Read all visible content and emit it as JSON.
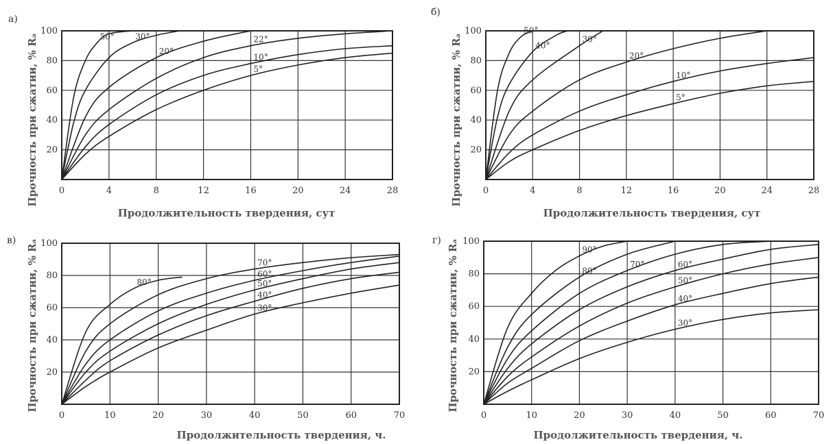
{
  "chart_data": [
    {
      "panel": "а)",
      "type": "line",
      "xlabel": "Продолжительность твердения, сут",
      "ylabel": "Прочность при сжатии, % Rₐ",
      "xlim": [
        0,
        28
      ],
      "ylim": [
        0,
        100
      ],
      "xticks": [
        0,
        4,
        8,
        12,
        16,
        20,
        24,
        28
      ],
      "xtick_labels": [
        "0",
        "4",
        "8",
        "12",
        "16",
        "20",
        "24",
        "28"
      ],
      "yticks": [
        20,
        40,
        60,
        80,
        100
      ],
      "ytick_labels": [
        "20",
        "40",
        "60",
        "80",
        "100"
      ],
      "grid": true,
      "series": [
        {
          "name": "50°",
          "x": [
            0,
            1,
            2,
            3,
            4,
            6
          ],
          "y": [
            0,
            55,
            80,
            92,
            98,
            100
          ]
        },
        {
          "name": "30°",
          "x": [
            0,
            1,
            2,
            4,
            6,
            8,
            10
          ],
          "y": [
            0,
            38,
            60,
            82,
            92,
            97,
            100
          ]
        },
        {
          "name": "20°",
          "x": [
            0,
            2,
            4,
            8,
            12,
            16
          ],
          "y": [
            0,
            42,
            62,
            82,
            93,
            100
          ]
        },
        {
          "name": "22°",
          "x": [
            0,
            2,
            4,
            8,
            12,
            16,
            20,
            24,
            28
          ],
          "y": [
            0,
            30,
            47,
            68,
            82,
            90,
            95,
            98,
            100
          ]
        },
        {
          "name": "10°",
          "x": [
            0,
            2,
            4,
            8,
            12,
            16,
            20,
            24,
            28
          ],
          "y": [
            0,
            22,
            37,
            57,
            70,
            78,
            84,
            88,
            90
          ]
        },
        {
          "name": "5°",
          "x": [
            0,
            2,
            4,
            8,
            12,
            16,
            20,
            24,
            28
          ],
          "y": [
            0,
            17,
            29,
            47,
            60,
            70,
            77,
            82,
            85
          ]
        }
      ]
    },
    {
      "panel": "б)",
      "type": "line",
      "xlabel": "Продолжительность твердения, сут",
      "ylabel": "Прочность при сжатии, % Rₐ",
      "xlim": [
        0,
        28
      ],
      "ylim": [
        0,
        100
      ],
      "xticks": [
        0,
        4,
        8,
        12,
        16,
        20,
        24,
        28
      ],
      "xtick_labels": [
        "0",
        "4",
        "8",
        "12",
        "16",
        "20",
        "24",
        "28"
      ],
      "yticks": [
        20,
        40,
        60,
        80,
        100
      ],
      "ytick_labels": [
        "20",
        "40",
        "60",
        "80",
        "100"
      ],
      "grid": true,
      "series": [
        {
          "name": "50°",
          "x": [
            0,
            1,
            2,
            3,
            4
          ],
          "y": [
            0,
            60,
            85,
            96,
            100
          ]
        },
        {
          "name": "40°",
          "x": [
            0,
            1,
            2,
            4,
            6,
            7
          ],
          "y": [
            0,
            42,
            64,
            86,
            97,
            100
          ]
        },
        {
          "name": "30°",
          "x": [
            0,
            2,
            4,
            8,
            10
          ],
          "y": [
            0,
            46,
            67,
            90,
            100
          ]
        },
        {
          "name": "20°",
          "x": [
            0,
            2,
            4,
            8,
            12,
            16,
            20,
            24
          ],
          "y": [
            0,
            30,
            46,
            67,
            79,
            88,
            95,
            100
          ]
        },
        {
          "name": "10°",
          "x": [
            0,
            2,
            4,
            8,
            12,
            16,
            20,
            24,
            28
          ],
          "y": [
            0,
            18,
            30,
            46,
            57,
            66,
            73,
            78,
            82
          ]
        },
        {
          "name": "5°",
          "x": [
            0,
            2,
            4,
            8,
            12,
            16,
            20,
            24,
            28
          ],
          "y": [
            0,
            12,
            20,
            33,
            43,
            51,
            58,
            63,
            66
          ]
        }
      ]
    },
    {
      "panel": "в)",
      "type": "line",
      "xlabel": "Продолжительность твердения, ч.",
      "ylabel": "Прочность при сжатии, % Rₐ",
      "xlim": [
        0,
        70
      ],
      "ylim": [
        0,
        100
      ],
      "xticks": [
        0,
        10,
        20,
        30,
        40,
        50,
        60,
        70
      ],
      "xtick_labels": [
        "0",
        "10",
        "20",
        "30",
        "40",
        "50",
        "60",
        "70"
      ],
      "yticks": [
        20,
        40,
        60,
        80,
        100
      ],
      "ytick_labels": [
        "20",
        "40",
        "60",
        "80",
        "100"
      ],
      "grid": true,
      "series": [
        {
          "name": "80°",
          "x": [
            0,
            5,
            10,
            15,
            20,
            25
          ],
          "y": [
            0,
            45,
            62,
            72,
            77,
            79
          ]
        },
        {
          "name": "70°",
          "x": [
            0,
            5,
            10,
            20,
            30,
            40,
            50,
            60,
            70
          ],
          "y": [
            0,
            33,
            50,
            68,
            78,
            84,
            88,
            91,
            93
          ]
        },
        {
          "name": "60°",
          "x": [
            0,
            5,
            10,
            20,
            30,
            40,
            50,
            60,
            70
          ],
          "y": [
            0,
            25,
            40,
            58,
            69,
            77,
            83,
            88,
            92
          ]
        },
        {
          "name": "50°",
          "x": [
            0,
            5,
            10,
            20,
            30,
            40,
            50,
            60,
            70
          ],
          "y": [
            0,
            20,
            33,
            50,
            62,
            71,
            78,
            84,
            88
          ]
        },
        {
          "name": "40°",
          "x": [
            0,
            5,
            10,
            20,
            30,
            40,
            50,
            60,
            70
          ],
          "y": [
            0,
            15,
            27,
            43,
            55,
            64,
            72,
            78,
            82
          ]
        },
        {
          "name": "30°",
          "x": [
            0,
            5,
            10,
            20,
            30,
            40,
            50,
            60,
            70
          ],
          "y": [
            0,
            11,
            20,
            35,
            46,
            56,
            63,
            69,
            74
          ]
        }
      ]
    },
    {
      "panel": "г)",
      "type": "line",
      "xlabel": "Продолжительность твердения, ч.",
      "ylabel": "Прочность при сжатии, % Rₐ",
      "xlim": [
        0,
        70
      ],
      "ylim": [
        0,
        100
      ],
      "xticks": [
        0,
        10,
        20,
        30,
        40,
        50,
        60,
        70
      ],
      "xtick_labels": [
        "0",
        "10",
        "20",
        "30",
        "40",
        "50",
        "60",
        "70"
      ],
      "yticks": [
        20,
        40,
        60,
        80,
        100
      ],
      "ytick_labels": [
        "20",
        "40",
        "60",
        "80",
        "100"
      ],
      "grid": true,
      "series": [
        {
          "name": "90°",
          "x": [
            0,
            5,
            10,
            15,
            20,
            25,
            30
          ],
          "y": [
            0,
            47,
            68,
            82,
            91,
            97,
            100
          ]
        },
        {
          "name": "80°",
          "x": [
            0,
            5,
            10,
            20,
            30,
            40
          ],
          "y": [
            0,
            35,
            55,
            78,
            92,
            100
          ]
        },
        {
          "name": "70°",
          "x": [
            0,
            5,
            10,
            20,
            30,
            40,
            50,
            60
          ],
          "y": [
            0,
            28,
            45,
            68,
            82,
            92,
            98,
            100
          ]
        },
        {
          "name": "60°",
          "x": [
            0,
            5,
            10,
            20,
            30,
            40,
            50,
            60,
            70
          ],
          "y": [
            0,
            22,
            37,
            58,
            72,
            82,
            89,
            95,
            98
          ]
        },
        {
          "name": "50°",
          "x": [
            0,
            5,
            10,
            20,
            30,
            40,
            50,
            60,
            70
          ],
          "y": [
            0,
            17,
            29,
            48,
            62,
            72,
            80,
            86,
            90
          ]
        },
        {
          "name": "40°",
          "x": [
            0,
            5,
            10,
            20,
            30,
            40,
            50,
            60,
            70
          ],
          "y": [
            0,
            13,
            22,
            39,
            51,
            61,
            68,
            74,
            78
          ]
        },
        {
          "name": "30°",
          "x": [
            0,
            5,
            10,
            20,
            30,
            40,
            50,
            60,
            70
          ],
          "y": [
            0,
            8,
            15,
            28,
            38,
            46,
            52,
            56,
            58
          ]
        }
      ]
    }
  ]
}
